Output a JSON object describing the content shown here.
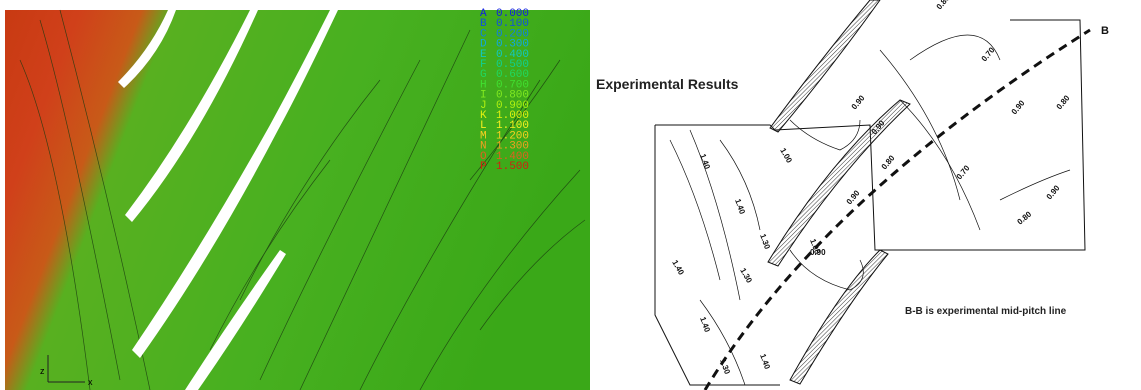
{
  "left_panel": {
    "legend": [
      {
        "letter": "A",
        "value": "0.000",
        "color": "#1020e0"
      },
      {
        "letter": "B",
        "value": "0.100",
        "color": "#1050e0"
      },
      {
        "letter": "C",
        "value": "0.200",
        "color": "#1080e0"
      },
      {
        "letter": "D",
        "value": "0.300",
        "color": "#10a8e0"
      },
      {
        "letter": "E",
        "value": "0.400",
        "color": "#10c8c0"
      },
      {
        "letter": "F",
        "value": "0.500",
        "color": "#10d090"
      },
      {
        "letter": "G",
        "value": "0.600",
        "color": "#20d860"
      },
      {
        "letter": "H",
        "value": "0.700",
        "color": "#40e030"
      },
      {
        "letter": "I",
        "value": "0.800",
        "color": "#80e820"
      },
      {
        "letter": "J",
        "value": "0.900",
        "color": "#b0f010"
      },
      {
        "letter": "K",
        "value": "1.000",
        "color": "#e0f010"
      },
      {
        "letter": "L",
        "value": "1.100",
        "color": "#f8f020"
      },
      {
        "letter": "M",
        "value": "1.200",
        "color": "#f8d020"
      },
      {
        "letter": "N",
        "value": "1.300",
        "color": "#f0a020"
      },
      {
        "letter": "O",
        "value": "1.400",
        "color": "#e06020"
      },
      {
        "letter": "P",
        "value": "1.500",
        "color": "#d02010"
      }
    ],
    "axes": {
      "vertical": "z",
      "horizontal": "x"
    }
  },
  "right_panel": {
    "title": "Experimental Results",
    "line_label": "B",
    "caption": "B-B is experimental  mid-pitch line",
    "contour_labels": [
      "0.80",
      "0.70",
      "0.90",
      "1.00",
      "1.40",
      "1.40",
      "1.30",
      "1.40",
      "1.30",
      "0.90",
      "1.00",
      "0.90",
      "0.80",
      "0.70",
      "0.90",
      "0.80",
      "0.90",
      "1.40",
      "1.30",
      "1.40",
      "0.80",
      "0.90"
    ]
  }
}
